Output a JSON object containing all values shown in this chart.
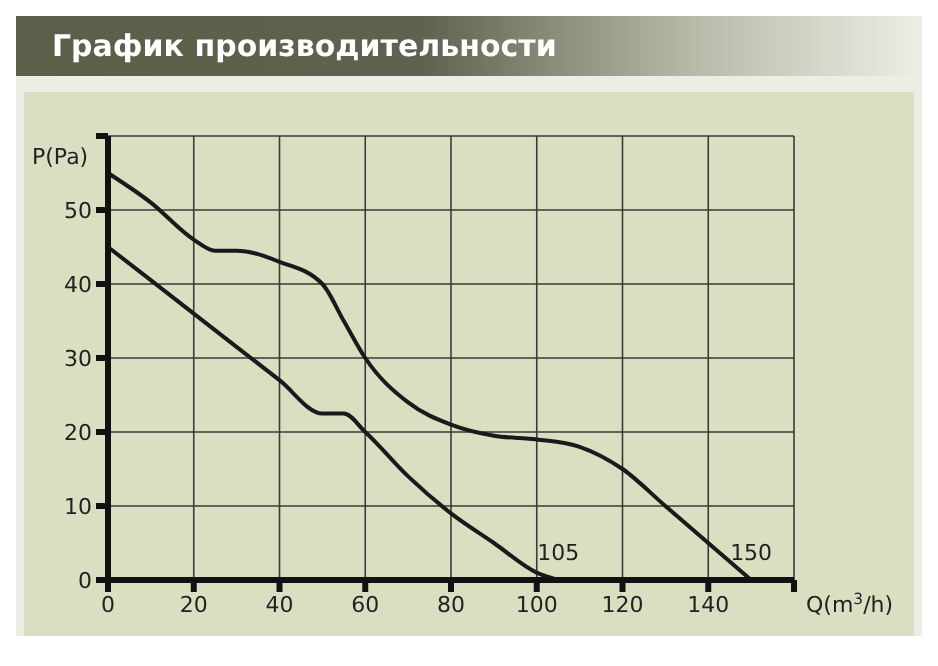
{
  "chart_data": {
    "type": "line",
    "title": "График производительности",
    "xlabel": "Q(m$^{3}$/h)",
    "ylabel": "P(Pa)",
    "xlim": [
      0,
      160
    ],
    "xticks": [
      0,
      20,
      40,
      60,
      80,
      100,
      120,
      140,
      {
        "value": 160,
        "label": null
      }
    ],
    "ylim": [
      0,
      60
    ],
    "yticks": [
      0,
      10,
      20,
      30,
      40,
      50,
      {
        "value": 60,
        "label": null
      }
    ],
    "grid": true,
    "marker": "none",
    "line_style": "solid",
    "series": [
      {
        "color": "#1a1a1a",
        "x": [
          0,
          20,
          40,
          50,
          55,
          60,
          70,
          80,
          90,
          100,
          105
        ],
        "values": [
          45,
          36,
          27,
          22.5,
          22.5,
          20,
          14,
          9,
          5,
          1,
          0
        ]
      },
      {
        "color": "#1a1a1a",
        "x": [
          0,
          10,
          20,
          25,
          30,
          40,
          50,
          55,
          60,
          70,
          80,
          90,
          100,
          110,
          120,
          130,
          140,
          150
        ],
        "values": [
          55,
          51,
          46,
          44.5,
          44.5,
          43,
          40,
          35,
          30,
          24,
          21,
          19.5,
          19,
          18,
          15,
          10,
          5,
          0
        ]
      }
    ],
    "annotations": [
      {
        "text": "105",
        "x": 105,
        "y": 0
      },
      {
        "text": "150",
        "x": 150,
        "y": 0
      }
    ]
  }
}
